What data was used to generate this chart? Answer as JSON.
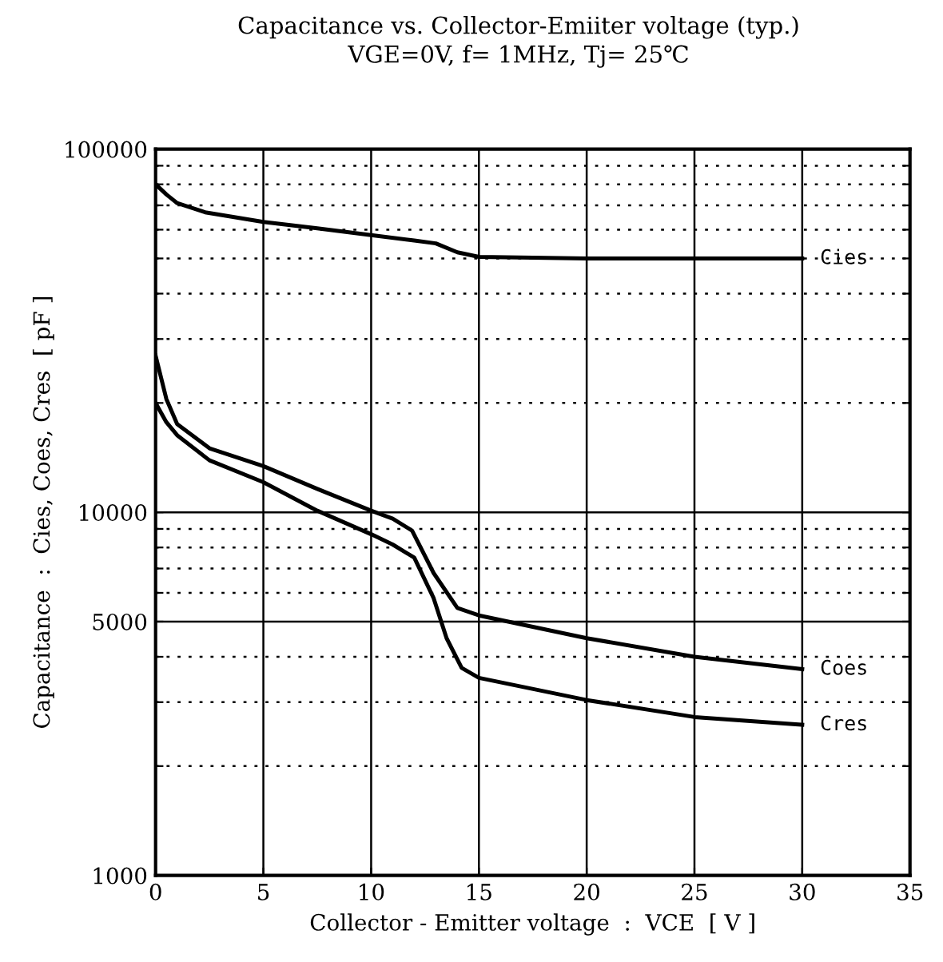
{
  "chart_data": {
    "type": "line",
    "title": "Capacitance vs. Collector-Emiiter voltage (typ.)",
    "subtitle": "VGE=0V, f= 1MHz, Tj= 25℃",
    "xlabel": "Collector - Emitter voltage  :  VCE  [ V ]",
    "ylabel": "Capacitance  :  Cies, Coes, Cres  [ pF ]",
    "series": [
      {
        "name": "Cies",
        "color": "#000000",
        "x": [
          0,
          0.5,
          1,
          2.3,
          5,
          7.5,
          10,
          12,
          13,
          14,
          15,
          20,
          25,
          30
        ],
        "values": [
          80000,
          75000,
          71000,
          67000,
          63000,
          60500,
          58000,
          56000,
          55000,
          52000,
          50500,
          50000,
          50000,
          50000
        ]
      },
      {
        "name": "Coes",
        "color": "#000000",
        "x": [
          0,
          0.5,
          1,
          2.5,
          5,
          7.5,
          10,
          11,
          11.9,
          12.9,
          14,
          15,
          20,
          25,
          30
        ],
        "values": [
          27000,
          20500,
          17500,
          15000,
          13400,
          11600,
          10100,
          9600,
          8900,
          6800,
          5450,
          5200,
          4500,
          4000,
          3700
        ]
      },
      {
        "name": "Cres",
        "color": "#000000",
        "x": [
          0,
          0.5,
          1,
          2.5,
          5,
          7.5,
          10,
          11,
          12,
          12.9,
          13.5,
          14.2,
          15,
          20,
          25,
          30
        ],
        "values": [
          20000,
          17700,
          16300,
          13900,
          12100,
          10100,
          8700,
          8150,
          7500,
          5800,
          4500,
          3730,
          3500,
          3040,
          2730,
          2600
        ]
      }
    ],
    "xlim": [
      0,
      35
    ],
    "xticks": [
      0,
      5,
      10,
      15,
      20,
      25,
      30,
      35
    ],
    "ylim": [
      1000,
      100000
    ],
    "log": true,
    "yticks": [
      1000,
      {
        "value": 2000,
        "label": null
      },
      {
        "value": 3000,
        "label": null
      },
      {
        "value": 4000,
        "label": null
      },
      5000,
      {
        "value": 6000,
        "label": null
      },
      {
        "value": 7000,
        "label": null
      },
      {
        "value": 8000,
        "label": null
      },
      {
        "value": 9000,
        "label": null
      },
      10000,
      {
        "value": 20000,
        "label": null
      },
      {
        "value": 30000,
        "label": null
      },
      {
        "value": 40000,
        "label": null
      },
      {
        "value": 50000,
        "label": null
      },
      {
        "value": 60000,
        "label": null
      },
      {
        "value": 70000,
        "label": null
      },
      {
        "value": 80000,
        "label": null
      },
      {
        "value": 90000,
        "label": null
      },
      100000
    ],
    "grid": true,
    "legend": "right",
    "marker": "none",
    "line_style": "solid"
  }
}
